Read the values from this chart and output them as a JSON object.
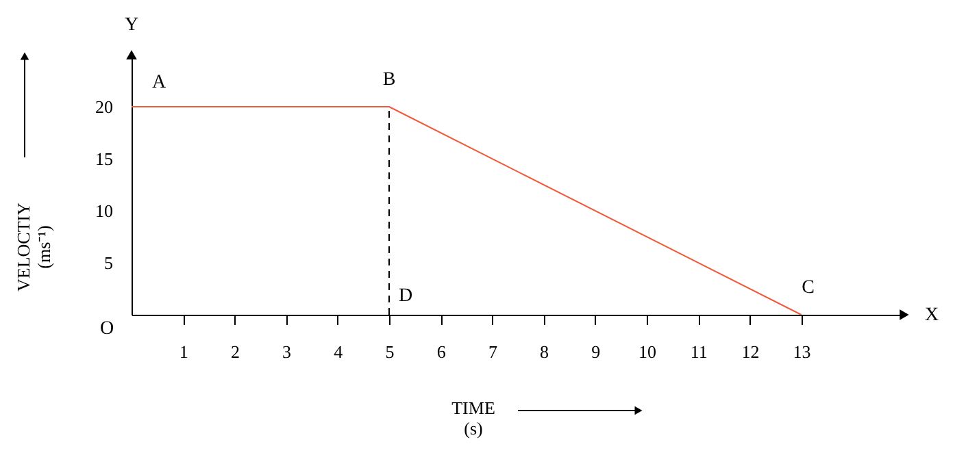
{
  "chart_data": {
    "type": "line",
    "xlabel": "TIME\n(s)",
    "ylabel": "VELOCTIY\n(ms⁻¹)",
    "x": [
      0,
      5,
      13
    ],
    "series": [
      {
        "color": "#f05a3c",
        "values": [
          20,
          20,
          0
        ]
      }
    ],
    "xlim": [
      0,
      15
    ],
    "ylim": [
      0,
      25
    ],
    "xticks": [
      1,
      2,
      3,
      4,
      5,
      6,
      7,
      8,
      9,
      10,
      11,
      12,
      13
    ],
    "yticks": [
      5,
      10,
      15,
      20
    ],
    "ref_lines": [
      {
        "axis": "x",
        "value": 5,
        "color": "#000000",
        "line_style": "dashed"
      }
    ],
    "annotations": [
      {
        "text": "A",
        "x": 0,
        "y": 20
      },
      {
        "text": "B",
        "x": 5,
        "y": 20
      },
      {
        "text": "C",
        "x": 13,
        "y": 0
      },
      {
        "text": "D",
        "x": 5,
        "y": 0
      },
      "O",
      {
        "text": "X",
        "x": 15,
        "y": 0
      },
      {
        "text": "Y",
        "x": 0,
        "y": 25
      }
    ],
    "grid": false,
    "marker": "none",
    "line_style": "solid"
  }
}
